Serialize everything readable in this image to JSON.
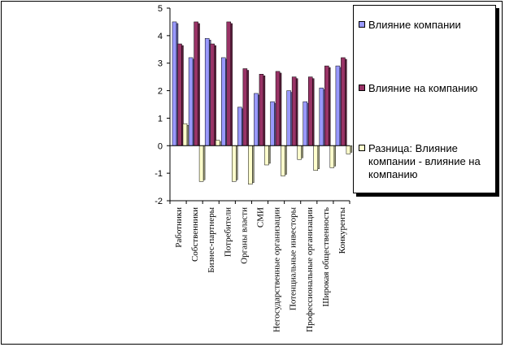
{
  "chart_data": {
    "type": "bar",
    "categories": [
      "Работники",
      "Собственники",
      "Бизнес-партнеры",
      "Потребители",
      "Органы власти",
      "СМИ",
      "Негосударственные организации",
      "Потенциальные инвесторы",
      "Профессиональные организации",
      "Широкая общественность",
      "Конкуренты"
    ],
    "series": [
      {
        "name": "Влияние компании",
        "color": "#9999ff",
        "values": [
          4.5,
          3.2,
          3.9,
          3.2,
          1.4,
          1.9,
          1.6,
          2.0,
          1.6,
          2.1,
          2.9
        ]
      },
      {
        "name": "Влияние на компанию",
        "color": "#993366",
        "values": [
          3.7,
          4.5,
          3.7,
          4.5,
          2.8,
          2.6,
          2.7,
          2.5,
          2.5,
          2.9,
          3.2
        ]
      },
      {
        "name": "Разница: Влияние компании - влияние на компанию",
        "color": "#ffffcc",
        "values": [
          0.8,
          -1.3,
          0.2,
          -1.3,
          -1.4,
          -0.7,
          -1.1,
          -0.5,
          -0.9,
          -0.8,
          -0.3
        ]
      }
    ],
    "yticks": [
      "5",
      "4",
      "3",
      "2",
      "1",
      "0",
      "-1",
      "-2"
    ],
    "ylim": [
      -2,
      5
    ],
    "grid": false,
    "legend": "right"
  }
}
